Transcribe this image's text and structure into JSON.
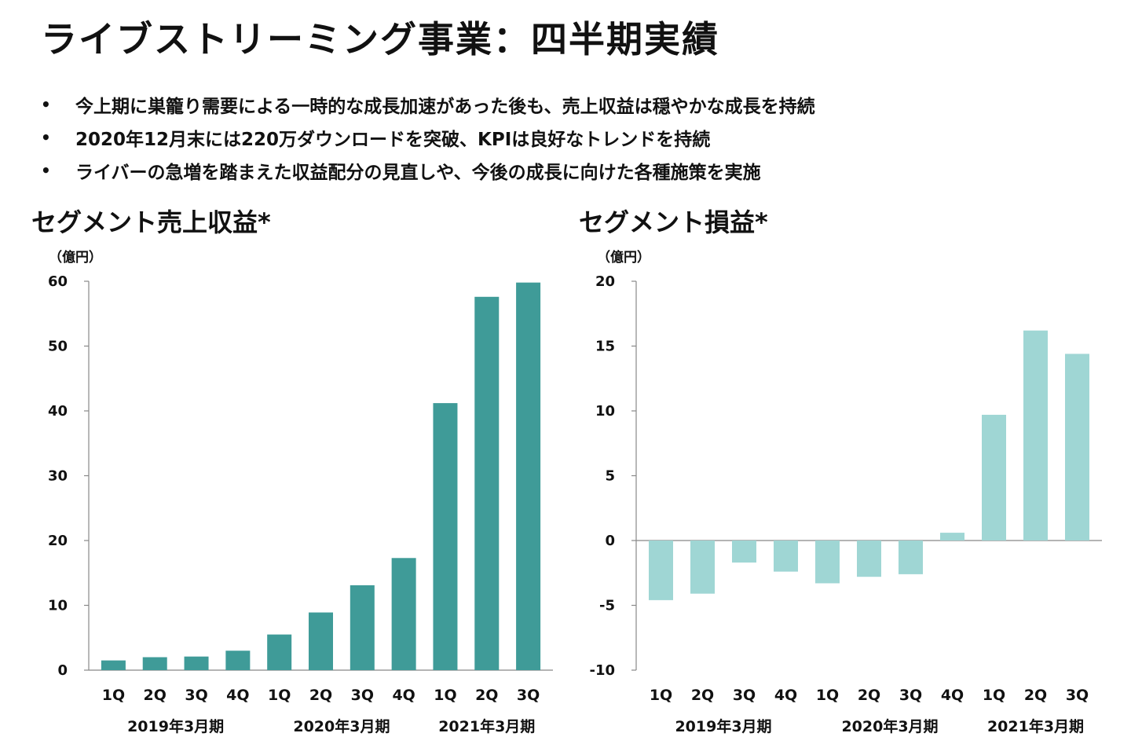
{
  "page": {
    "title": "ライブストリーミング事業：四半期実績",
    "bullet_marker": "•",
    "bullets": [
      "今上期に巣籠り需要による一時的な成長加速があった後も、売上収益は穏やかな成長を持続",
      "2020年12月末には220万ダウンロードを突破、KPIは良好なトレンドを持続",
      "ライバーの急増を踏まえた収益配分の見直しや、今後の成長に向けた各種施策を実施"
    ]
  },
  "chart_data": [
    {
      "type": "bar",
      "title": "セグメント売上収益*",
      "unit_label": "（億円）",
      "categories": [
        "1Q",
        "2Q",
        "3Q",
        "4Q",
        "1Q",
        "2Q",
        "3Q",
        "4Q",
        "1Q",
        "2Q",
        "3Q"
      ],
      "groups": [
        {
          "label": "2019年3月期",
          "span": [
            0,
            3
          ]
        },
        {
          "label": "2020年3月期",
          "span": [
            4,
            7
          ]
        },
        {
          "label": "2021年3月期",
          "span": [
            8,
            10
          ]
        }
      ],
      "values": [
        1.5,
        2.0,
        2.1,
        3.0,
        5.5,
        8.9,
        13.1,
        17.3,
        41.2,
        57.6,
        59.8
      ],
      "ylim": [
        0,
        60
      ],
      "yticks": [
        0,
        10,
        20,
        30,
        40,
        50,
        60
      ],
      "color": "#3f9b98",
      "grid": false
    },
    {
      "type": "bar",
      "title": "セグメント損益*",
      "unit_label": "（億円）",
      "categories": [
        "1Q",
        "2Q",
        "3Q",
        "4Q",
        "1Q",
        "2Q",
        "3Q",
        "4Q",
        "1Q",
        "2Q",
        "3Q"
      ],
      "groups": [
        {
          "label": "2019年3月期",
          "span": [
            0,
            3
          ]
        },
        {
          "label": "2020年3月期",
          "span": [
            4,
            7
          ]
        },
        {
          "label": "2021年3月期",
          "span": [
            8,
            10
          ]
        }
      ],
      "values": [
        -4.6,
        -4.1,
        -1.7,
        -2.4,
        -3.3,
        -2.8,
        -2.6,
        0.6,
        9.7,
        16.2,
        14.4
      ],
      "ylim": [
        -10,
        20
      ],
      "yticks": [
        -10,
        -5,
        0,
        5,
        10,
        15,
        20
      ],
      "color": "#9fd6d4",
      "grid": false
    }
  ]
}
